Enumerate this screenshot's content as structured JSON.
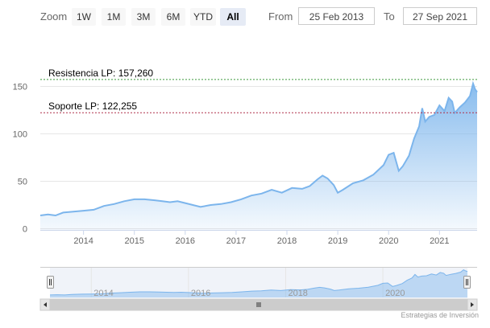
{
  "range_selector": {
    "zoom_label": "Zoom",
    "buttons": [
      "1W",
      "1M",
      "3M",
      "6M",
      "YTD",
      "All"
    ],
    "selected": "All",
    "from_label": "From",
    "from_value": "25 Feb 2013",
    "to_label": "To",
    "to_value": "27 Sep 2021"
  },
  "chart_data": {
    "type": "area",
    "title": "",
    "xlabel": "",
    "ylabel": "",
    "x_range": [
      2013.15,
      2021.74
    ],
    "ylim": [
      0,
      160
    ],
    "y_ticks": [
      0,
      50,
      100,
      150
    ],
    "x_ticks": [
      "2014",
      "2015",
      "2016",
      "2017",
      "2018",
      "2019",
      "2020",
      "2021"
    ],
    "grid": true,
    "series": [
      {
        "x": [
          2013.15,
          2013.3,
          2013.45,
          2013.6,
          2013.8,
          2014.0,
          2014.2,
          2014.4,
          2014.6,
          2014.8,
          2015.0,
          2015.2,
          2015.4,
          2015.55,
          2015.7,
          2015.85,
          2016.0,
          2016.15,
          2016.3,
          2016.5,
          2016.7,
          2016.9,
          2017.1,
          2017.3,
          2017.5,
          2017.7,
          2017.9,
          2018.1,
          2018.3,
          2018.45,
          2018.6,
          2018.7,
          2018.8,
          2018.92,
          2019.0,
          2019.1,
          2019.3,
          2019.5,
          2019.7,
          2019.9,
          2020.0,
          2020.1,
          2020.2,
          2020.28,
          2020.4,
          2020.5,
          2020.6,
          2020.66,
          2020.72,
          2020.8,
          2020.9,
          2021.0,
          2021.1,
          2021.18,
          2021.25,
          2021.3,
          2021.4,
          2021.5,
          2021.6,
          2021.66,
          2021.7,
          2021.74
        ],
        "values": [
          14,
          15,
          14,
          17,
          18,
          19,
          20,
          24,
          26,
          29,
          31,
          31,
          30,
          29,
          28,
          29,
          27,
          25,
          23,
          25,
          26,
          28,
          31,
          35,
          37,
          41,
          38,
          43,
          42,
          45,
          52,
          56,
          53,
          46,
          38,
          41,
          48,
          51,
          57,
          67,
          78,
          80,
          61,
          66,
          77,
          95,
          108,
          127,
          113,
          118,
          120,
          130,
          124,
          138,
          134,
          122,
          128,
          133,
          140,
          153,
          147,
          144
        ]
      }
    ],
    "reference_lines": [
      {
        "label": "Resistencia LP: 157,260",
        "value": 157.26,
        "color": "#3d9b3d"
      },
      {
        "label": "Soporte LP: 122,255",
        "value": 122.255,
        "color": "#b0304a"
      }
    ],
    "line_color": "#7cb5ec",
    "navigator_x_ticks": [
      "2014",
      "2016",
      "2018",
      "2020"
    ],
    "credits": "Estrategias de Inversión"
  }
}
